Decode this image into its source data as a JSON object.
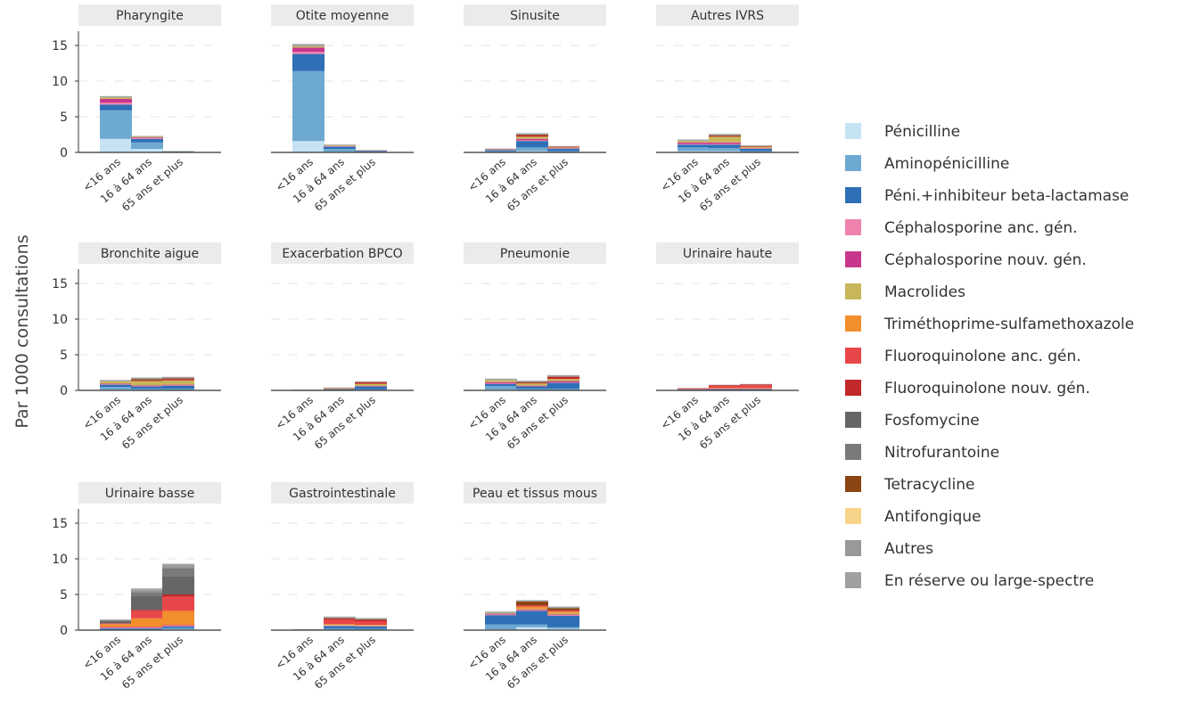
{
  "chart_data": {
    "type": "bar",
    "stacked": true,
    "ylabel": "Par 1000 consultations",
    "ylim": [
      0,
      17
    ],
    "yticks": [
      0,
      5,
      10,
      15
    ],
    "grid": true,
    "legend_position": "right",
    "categories": [
      "<16 ans",
      "16 à 64 ans",
      "65 ans et plus"
    ],
    "antibiotics": [
      {
        "name": "Pénicilline",
        "color": "#c6e3f4"
      },
      {
        "name": "Aminopénicilline",
        "color": "#6ea9d1"
      },
      {
        "name": "Péni.+inhibiteur beta-lactamase",
        "color": "#2f6fb6"
      },
      {
        "name": "Céphalosporine anc. gén.",
        "color": "#ee82ad"
      },
      {
        "name": "Céphalosporine nouv. gén.",
        "color": "#c7368c"
      },
      {
        "name": "Macrolides",
        "color": "#c8b75a"
      },
      {
        "name": "Triméthoprime-sulfamethoxazole",
        "color": "#f28e2b"
      },
      {
        "name": "Fluoroquinolone anc. gén.",
        "color": "#e8474a"
      },
      {
        "name": "Fluoroquinolone nouv. gén.",
        "color": "#c0282a"
      },
      {
        "name": "Fosfomycine",
        "color": "#666666"
      },
      {
        "name": "Nitrofurantoine",
        "color": "#7a7a7a"
      },
      {
        "name": "Tetracycline",
        "color": "#8b4513"
      },
      {
        "name": "Antifongique",
        "color": "#f8d38a"
      },
      {
        "name": "Autres",
        "color": "#999999"
      },
      {
        "name": "En réserve ou large-spectre",
        "color": "#a0a0a0"
      }
    ],
    "panels": [
      {
        "title": "Pharyngite",
        "values": [
          [
            1.9,
            4.0,
            0.8,
            0.3,
            0.5,
            0.2,
            0,
            0,
            0,
            0,
            0,
            0,
            0,
            0.1,
            0.1
          ],
          [
            0.5,
            0.9,
            0.5,
            0.1,
            0.1,
            0.1,
            0,
            0,
            0,
            0,
            0,
            0,
            0,
            0.05,
            0.05
          ],
          [
            0.02,
            0.08,
            0.05,
            0,
            0,
            0.02,
            0,
            0,
            0,
            0,
            0,
            0,
            0,
            0.01,
            0.02
          ]
        ]
      },
      {
        "title": "Otite moyenne",
        "values": [
          [
            1.6,
            9.8,
            2.4,
            0.3,
            0.6,
            0.2,
            0,
            0,
            0,
            0,
            0,
            0,
            0,
            0.1,
            0.2
          ],
          [
            0.1,
            0.4,
            0.3,
            0.05,
            0.05,
            0.1,
            0,
            0,
            0,
            0,
            0,
            0,
            0,
            0.05,
            0.05
          ],
          [
            0.03,
            0.1,
            0.1,
            0.02,
            0.02,
            0.03,
            0,
            0,
            0,
            0,
            0,
            0,
            0,
            0.02,
            0.03
          ]
        ]
      },
      {
        "title": "Sinusite",
        "values": [
          [
            0.05,
            0.15,
            0.15,
            0.02,
            0.05,
            0.05,
            0,
            0,
            0.02,
            0,
            0,
            0,
            0,
            0.03,
            0.03
          ],
          [
            0.2,
            0.5,
            0.9,
            0.1,
            0.2,
            0.3,
            0,
            0,
            0.2,
            0,
            0,
            0.1,
            0,
            0.1,
            0.1
          ],
          [
            0.05,
            0.15,
            0.3,
            0.05,
            0.05,
            0.1,
            0,
            0,
            0.1,
            0,
            0,
            0,
            0,
            0.05,
            0.05
          ]
        ]
      },
      {
        "title": "Autres IVRS",
        "values": [
          [
            0.2,
            0.5,
            0.4,
            0.1,
            0.2,
            0.2,
            0,
            0,
            0,
            0,
            0,
            0,
            0,
            0.1,
            0.1
          ],
          [
            0.2,
            0.4,
            0.5,
            0.1,
            0.2,
            0.8,
            0,
            0,
            0.1,
            0,
            0,
            0.1,
            0,
            0.1,
            0.1
          ],
          [
            0.05,
            0.15,
            0.3,
            0.05,
            0.05,
            0.2,
            0,
            0,
            0.1,
            0,
            0,
            0,
            0,
            0.05,
            0.05
          ]
        ]
      },
      {
        "title": "Bronchite aigue",
        "values": [
          [
            0.1,
            0.4,
            0.3,
            0.05,
            0.1,
            0.3,
            0,
            0,
            0,
            0,
            0,
            0,
            0,
            0.1,
            0.1
          ],
          [
            0.05,
            0.2,
            0.3,
            0.05,
            0.1,
            0.6,
            0,
            0,
            0.1,
            0,
            0,
            0.2,
            0,
            0.1,
            0.1
          ],
          [
            0.05,
            0.2,
            0.4,
            0.05,
            0.1,
            0.6,
            0,
            0,
            0.2,
            0,
            0,
            0.1,
            0,
            0.1,
            0.1
          ]
        ]
      },
      {
        "title": "Exacerbation BPCO",
        "values": [
          [
            0,
            0.02,
            0.03,
            0,
            0,
            0.03,
            0,
            0,
            0,
            0,
            0,
            0,
            0,
            0.02,
            0.02
          ],
          [
            0.02,
            0.05,
            0.1,
            0,
            0.02,
            0.1,
            0,
            0,
            0.05,
            0,
            0,
            0.02,
            0,
            0.02,
            0.02
          ],
          [
            0.05,
            0.1,
            0.4,
            0.02,
            0.05,
            0.3,
            0,
            0,
            0.2,
            0,
            0,
            0.05,
            0,
            0.05,
            0.05
          ]
        ]
      },
      {
        "title": "Pneumonie",
        "values": [
          [
            0.1,
            0.5,
            0.3,
            0.05,
            0.2,
            0.3,
            0,
            0,
            0,
            0,
            0,
            0,
            0,
            0.1,
            0.1
          ],
          [
            0.05,
            0.2,
            0.3,
            0.02,
            0.1,
            0.3,
            0,
            0,
            0.1,
            0,
            0,
            0.1,
            0,
            0.1,
            0.1
          ],
          [
            0.05,
            0.2,
            0.8,
            0.05,
            0.2,
            0.3,
            0,
            0,
            0.3,
            0,
            0,
            0.05,
            0,
            0.1,
            0.1
          ]
        ]
      },
      {
        "title": "Urinaire haute",
        "values": [
          [
            0.02,
            0.05,
            0.05,
            0.02,
            0.05,
            0,
            0.05,
            0.05,
            0.02,
            0,
            0,
            0,
            0,
            0.02,
            0.02
          ],
          [
            0.02,
            0.05,
            0.1,
            0.02,
            0.05,
            0,
            0.1,
            0.3,
            0.1,
            0,
            0,
            0,
            0,
            0.03,
            0.03
          ],
          [
            0.02,
            0.05,
            0.1,
            0.02,
            0.05,
            0,
            0.1,
            0.4,
            0.1,
            0,
            0,
            0,
            0,
            0.03,
            0.03
          ]
        ]
      },
      {
        "title": "Urinaire basse",
        "values": [
          [
            0.05,
            0.1,
            0.1,
            0.1,
            0.1,
            0,
            0.4,
            0.1,
            0,
            0.3,
            0.1,
            0,
            0,
            0.1,
            0.05
          ],
          [
            0.05,
            0.1,
            0.1,
            0.1,
            0.1,
            0,
            1.2,
            1.0,
            0.2,
            2.0,
            0.5,
            0,
            0,
            0.3,
            0.2
          ],
          [
            0.1,
            0.2,
            0.2,
            0.1,
            0.1,
            0,
            2.0,
            2.0,
            0.3,
            2.6,
            1.1,
            0,
            0,
            0.4,
            0.2
          ]
        ]
      },
      {
        "title": "Gastrointestinale",
        "values": [
          [
            0,
            0.02,
            0.02,
            0,
            0,
            0.02,
            0,
            0.02,
            0,
            0,
            0,
            0,
            0,
            0.02,
            0.02
          ],
          [
            0.05,
            0.2,
            0.3,
            0.05,
            0.05,
            0.1,
            0.1,
            0.6,
            0.2,
            0,
            0,
            0.05,
            0,
            0.1,
            0.1
          ],
          [
            0.05,
            0.15,
            0.3,
            0.05,
            0.05,
            0.1,
            0.05,
            0.5,
            0.2,
            0,
            0,
            0.05,
            0,
            0.1,
            0.1
          ]
        ]
      },
      {
        "title": "Peau et tissus mous",
        "values": [
          [
            0.1,
            0.7,
            1.3,
            0.1,
            0.1,
            0.1,
            0,
            0,
            0,
            0,
            0,
            0,
            0,
            0.1,
            0.1
          ],
          [
            0.4,
            0.4,
            1.9,
            0.1,
            0.1,
            0.1,
            0.3,
            0.1,
            0.1,
            0,
            0,
            0.5,
            0,
            0.1,
            0.1
          ],
          [
            0.2,
            0.2,
            1.6,
            0.1,
            0.1,
            0.2,
            0.2,
            0.1,
            0.1,
            0,
            0,
            0.3,
            0,
            0.1,
            0.1
          ]
        ]
      }
    ]
  }
}
